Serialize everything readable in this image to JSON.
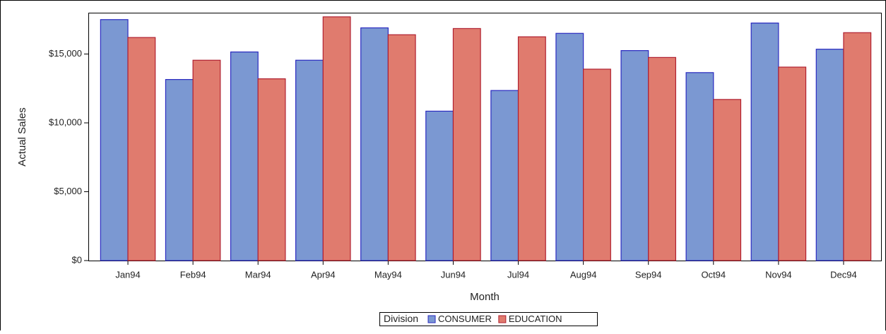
{
  "chart_data": {
    "type": "bar",
    "categories": [
      "Jan94",
      "Feb94",
      "Mar94",
      "Apr94",
      "May94",
      "Jun94",
      "Jul94",
      "Aug94",
      "Sep94",
      "Oct94",
      "Nov94",
      "Dec94"
    ],
    "series": [
      {
        "name": "CONSUMER",
        "color": "#7b98d2",
        "stroke": "#2a2ac0",
        "values": [
          17500,
          13150,
          15150,
          14550,
          16900,
          10850,
          12350,
          16500,
          15250,
          13650,
          17250,
          15350
        ]
      },
      {
        "name": "EDUCATION",
        "color": "#e07b6e",
        "stroke": "#b02030",
        "values": [
          16200,
          14550,
          13200,
          17700,
          16400,
          16850,
          16250,
          13900,
          14750,
          11700,
          14050,
          16550
        ]
      }
    ],
    "xlabel": "Month",
    "ylabel": "Actual Sales",
    "legend_title": "Division",
    "ylim": [
      0,
      18000
    ],
    "yticks": [
      {
        "value": 0,
        "label": "$0"
      },
      {
        "value": 5000,
        "label": "$5,000"
      },
      {
        "value": 10000,
        "label": "$10,000"
      },
      {
        "value": 15000,
        "label": "$15,000"
      }
    ],
    "legend": "bottom",
    "grid": false
  }
}
